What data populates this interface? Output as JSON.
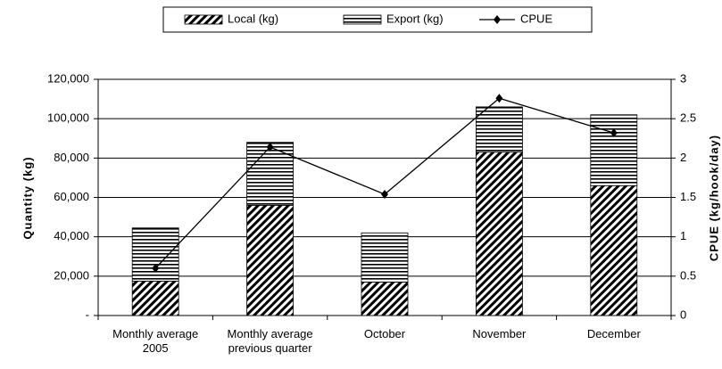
{
  "chart_data": {
    "type": "bar",
    "categories": [
      "Monthly average 2005",
      "Monthly average previous quarter",
      "October",
      "November",
      "December"
    ],
    "series": [
      {
        "name": "Local (kg)",
        "color": "#000000",
        "pattern": "diagonal",
        "values": [
          17500,
          56000,
          17000,
          83000,
          66000
        ]
      },
      {
        "name": "Export (kg)",
        "color": "#000000",
        "pattern": "horizontal",
        "values": [
          27000,
          32000,
          25000,
          23000,
          36000
        ]
      },
      {
        "name": "CPUE",
        "type": "line",
        "axis": "y2",
        "color": "#000000",
        "values": [
          0.6,
          2.14,
          1.54,
          2.76,
          2.32
        ]
      }
    ],
    "ylabel": "Quantity (kg)",
    "y2label": "CPUE (kg/hook/day)",
    "ylim": [
      0,
      120000
    ],
    "yticks": [
      {
        "value": 0,
        "label": "-"
      },
      {
        "value": 20000,
        "label": "20,000"
      },
      {
        "value": 40000,
        "label": "40,000"
      },
      {
        "value": 60000,
        "label": "60,000"
      },
      {
        "value": 80000,
        "label": "80,000"
      },
      {
        "value": 100000,
        "label": "100,000"
      },
      {
        "value": 120000,
        "label": "120,000"
      }
    ],
    "y2lim": [
      0,
      3
    ],
    "y2ticks": [
      0,
      0.5,
      1,
      1.5,
      2,
      2.5,
      3
    ],
    "grid": true,
    "legend": "top"
  }
}
